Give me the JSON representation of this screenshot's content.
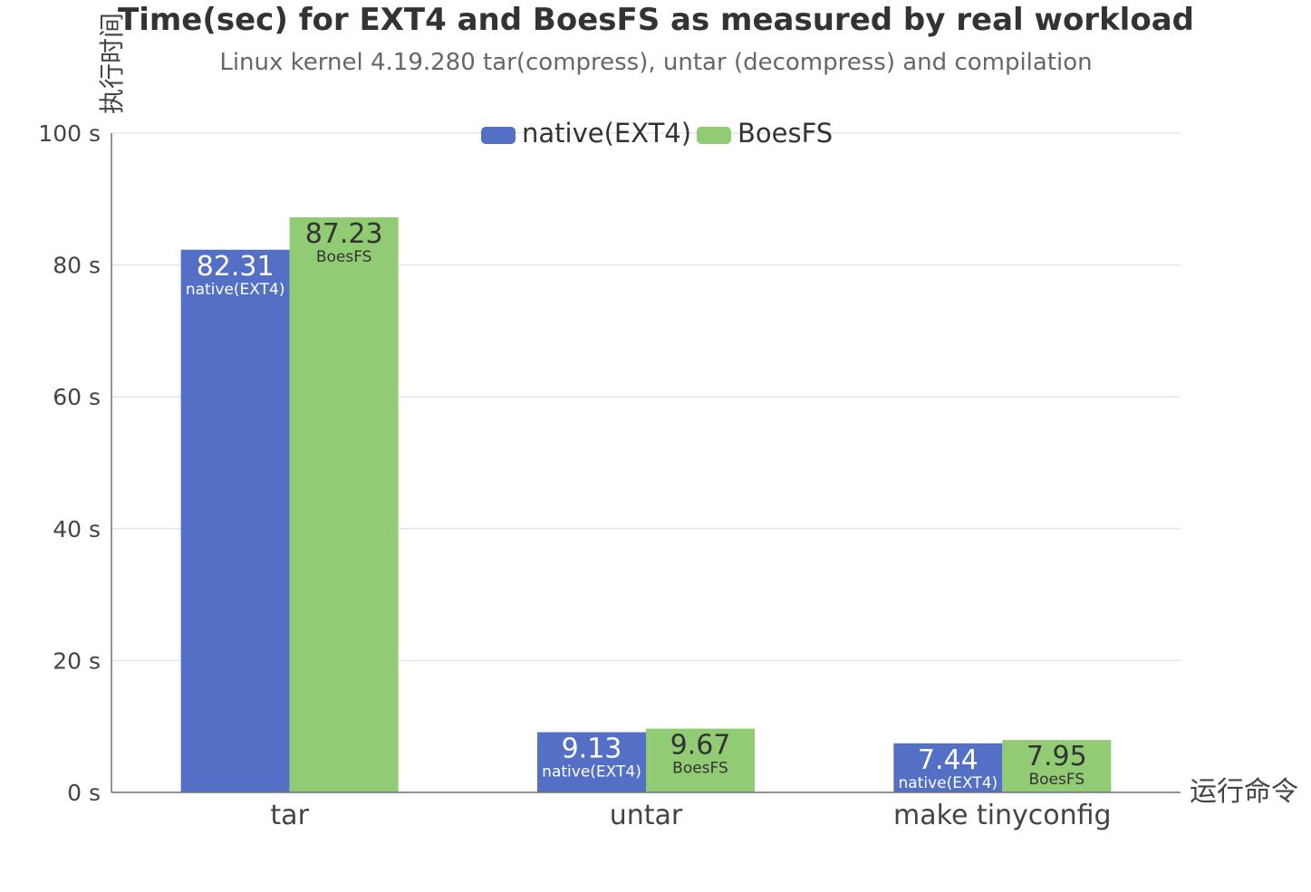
{
  "chart_data": {
    "type": "bar",
    "title": "Time(sec) for EXT4 and BoesFS as measured by real workload",
    "subtitle": "Linux kernel 4.19.280 tar(compress), untar (decompress) and compilation",
    "xlabel": "运行命令",
    "ylabel": "执行时间",
    "categories": [
      "tar",
      "untar",
      "make tinyconfig"
    ],
    "series": [
      {
        "name": "native(EXT4)",
        "color": "#5470c6",
        "values": [
          82.31,
          9.13,
          7.44
        ]
      },
      {
        "name": "BoesFS",
        "color": "#91cc75",
        "values": [
          87.23,
          9.67,
          7.95
        ]
      }
    ],
    "data_labels": [
      [
        "82.31",
        "9.13",
        "7.44"
      ],
      [
        "87.23",
        "9.67",
        "7.95"
      ]
    ],
    "ylim": [
      0,
      100
    ],
    "yticks": [
      0,
      20,
      40,
      60,
      80,
      100
    ],
    "ytick_labels": [
      "0 s",
      "20 s",
      "40 s",
      "60 s",
      "80 s",
      "100 s"
    ],
    "grid": true,
    "legend_position": "top-center"
  }
}
